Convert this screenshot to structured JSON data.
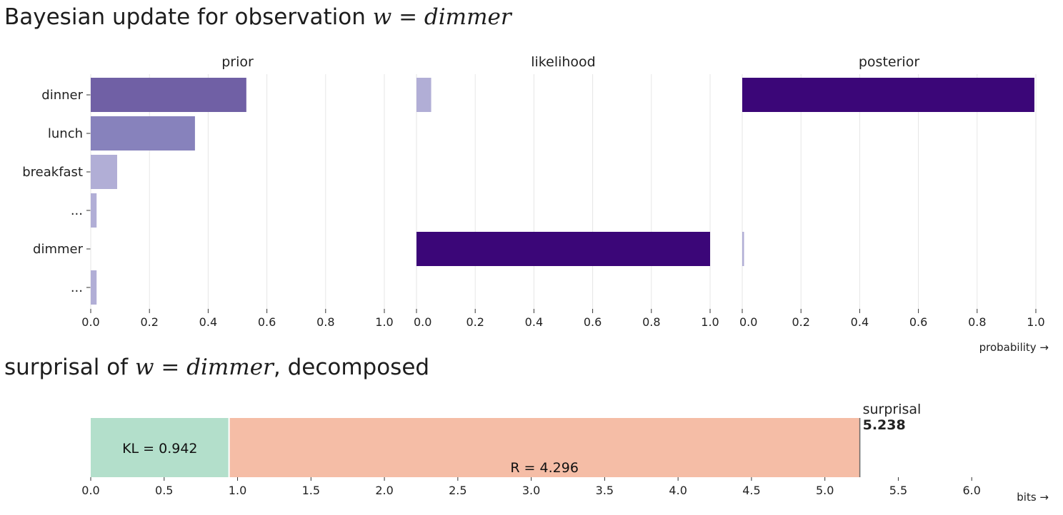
{
  "titles": {
    "update_prefix": "Bayesian update for observation",
    "update_var": "w = dimmer",
    "surprisal_prefix": "surprisal of",
    "surprisal_var": "w = dimmer",
    "surprisal_suffix": ", decomposed"
  },
  "chart_data": [
    {
      "type": "bar",
      "orientation": "horizontal",
      "facets": [
        "prior",
        "likelihood",
        "posterior"
      ],
      "categories": [
        "dinner",
        "lunch",
        "breakfast",
        "...",
        "dimmer",
        "..."
      ],
      "series": [
        {
          "name": "prior",
          "values": [
            0.53,
            0.355,
            0.09,
            0.02,
            0.0,
            0.02
          ]
        },
        {
          "name": "likelihood",
          "values": [
            0.05,
            0.0,
            0.0,
            0.0,
            1.0,
            0.0
          ]
        },
        {
          "name": "posterior",
          "values": [
            0.995,
            0.0,
            0.0,
            0.0,
            0.005,
            0.0
          ]
        }
      ],
      "xlim": [
        0,
        1
      ],
      "xticks": [
        "0.0",
        "0.2",
        "0.4",
        "0.6",
        "0.8",
        "1.0"
      ],
      "xlabel": "probability →",
      "colors": {
        "dark": "#3b0678",
        "high": "#7060a5",
        "mid": "#8782bc",
        "low": "#b1aed6"
      },
      "grid": true
    },
    {
      "type": "bar",
      "orientation": "horizontal",
      "stacked": true,
      "segments": [
        {
          "label": "KL",
          "value": 0.942,
          "color": "#b3dfcb"
        },
        {
          "label": "R",
          "value": 4.296,
          "color": "#f5bda6"
        }
      ],
      "total_label": "surprisal",
      "total_value": "5.238",
      "xlim": [
        0,
        6.5
      ],
      "xticks": [
        "0.0",
        "0.5",
        "1.0",
        "1.5",
        "2.0",
        "2.5",
        "3.0",
        "3.5",
        "4.0",
        "4.5",
        "5.0",
        "5.5",
        "6.0"
      ],
      "xlabel": "bits →"
    }
  ]
}
